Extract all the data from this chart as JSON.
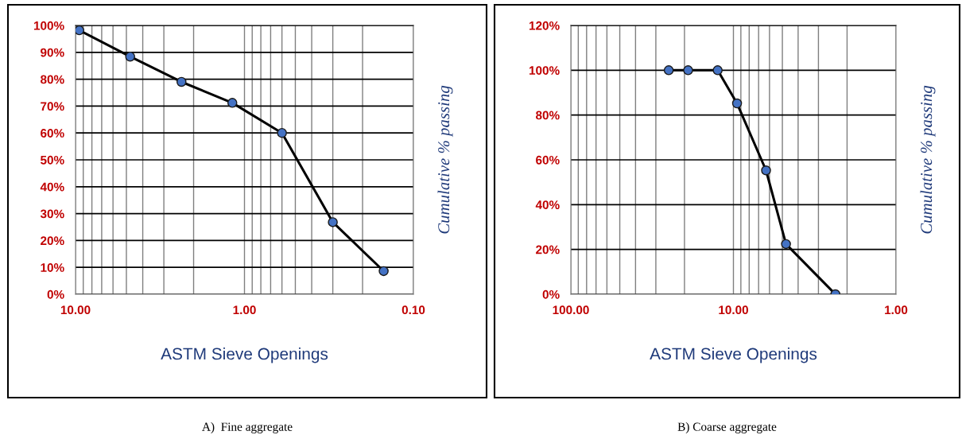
{
  "chart_data": [
    {
      "type": "line",
      "xlabel": "ASTM Sieve Openings",
      "ylabel": "Cumulative % passing",
      "log": "x",
      "grid": true,
      "marker": "circle",
      "line_style": "solid",
      "series": [
        {
          "color": "#4472c4",
          "x": [
            9.5,
            4.75,
            2.36,
            1.18,
            0.6,
            0.3,
            0.15
          ],
          "values": [
            98.2,
            88.4,
            79,
            71.2,
            60,
            26.8,
            8.6
          ]
        }
      ],
      "xlim": [
        10,
        0.1
      ],
      "xticks": [
        {
          "value": 10,
          "label": "10.00"
        },
        {
          "value": 1,
          "label": "1.00"
        },
        {
          "value": 0.1,
          "label": "0.10"
        }
      ],
      "ylim": [
        0,
        100
      ],
      "yticks": [
        {
          "value": 0,
          "label": "0%"
        },
        {
          "value": 10,
          "label": "10%"
        },
        {
          "value": 20,
          "label": "20%"
        },
        {
          "value": 30,
          "label": "30%"
        },
        {
          "value": 40,
          "label": "40%"
        },
        {
          "value": 50,
          "label": "50%"
        },
        {
          "value": 60,
          "label": "60%"
        },
        {
          "value": 70,
          "label": "70%"
        },
        {
          "value": 80,
          "label": "80%"
        },
        {
          "value": 90,
          "label": "90%"
        },
        {
          "value": 100,
          "label": "100%"
        }
      ],
      "annotations": [
        "A)  Fine aggregate"
      ]
    },
    {
      "type": "line",
      "xlabel": "ASTM Sieve Openings",
      "ylabel": "Cumulative % passing",
      "log": "x",
      "grid": true,
      "marker": "circle",
      "line_style": "solid",
      "series": [
        {
          "color": "#4472c4",
          "x": [
            25,
            19,
            12.5,
            9.5,
            6.3,
            4.75,
            2.36
          ],
          "values": [
            100,
            100,
            100,
            85.2,
            55.3,
            22.4,
            0
          ]
        }
      ],
      "xlim": [
        100,
        1
      ],
      "xticks": [
        {
          "value": 100,
          "label": "100.00"
        },
        {
          "value": 10,
          "label": "10.00"
        },
        {
          "value": 1,
          "label": "1.00"
        }
      ],
      "ylim": [
        0,
        120
      ],
      "yticks": [
        {
          "value": 0,
          "label": "0%"
        },
        {
          "value": 20,
          "label": "20%"
        },
        {
          "value": 40,
          "label": "40%"
        },
        {
          "value": 60,
          "label": "60%"
        },
        {
          "value": 80,
          "label": "80%"
        },
        {
          "value": 100,
          "label": "100%"
        },
        {
          "value": 120,
          "label": "120%"
        }
      ],
      "annotations": [
        "B) Coarse aggregate"
      ]
    }
  ]
}
